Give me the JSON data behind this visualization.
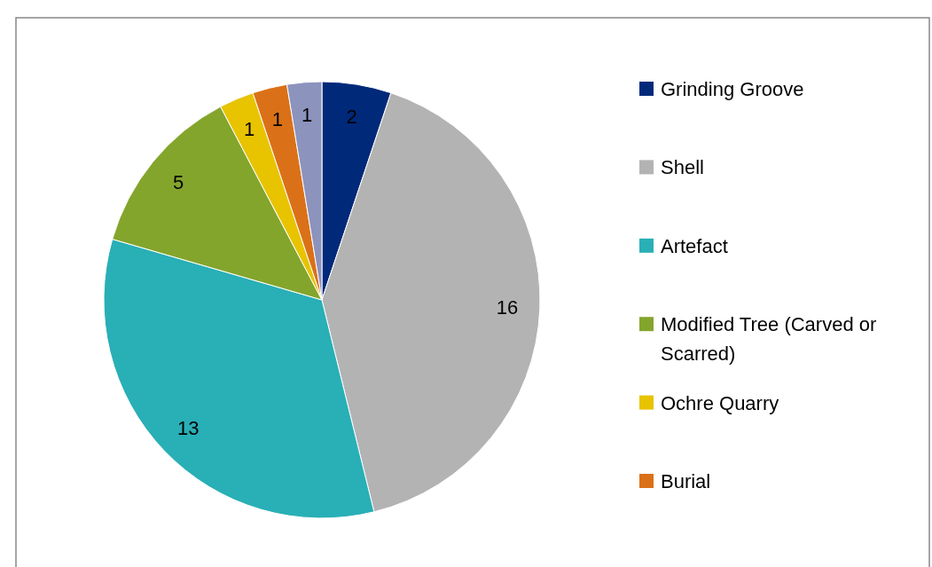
{
  "chart_data": {
    "type": "pie",
    "categories": [
      "Grinding Groove",
      "Shell",
      "Artefact",
      "Modified Tree (Carved or Scarred)",
      "Ochre Quarry",
      "Burial",
      null
    ],
    "values": [
      2,
      16,
      13,
      5,
      1,
      1,
      1
    ],
    "colors": [
      "#00297a",
      "#b3b3b3",
      "#29afb6",
      "#84a52c",
      "#e8c300",
      "#da7118",
      "#8c93bd"
    ],
    "data_labels": true,
    "legend": "right"
  }
}
